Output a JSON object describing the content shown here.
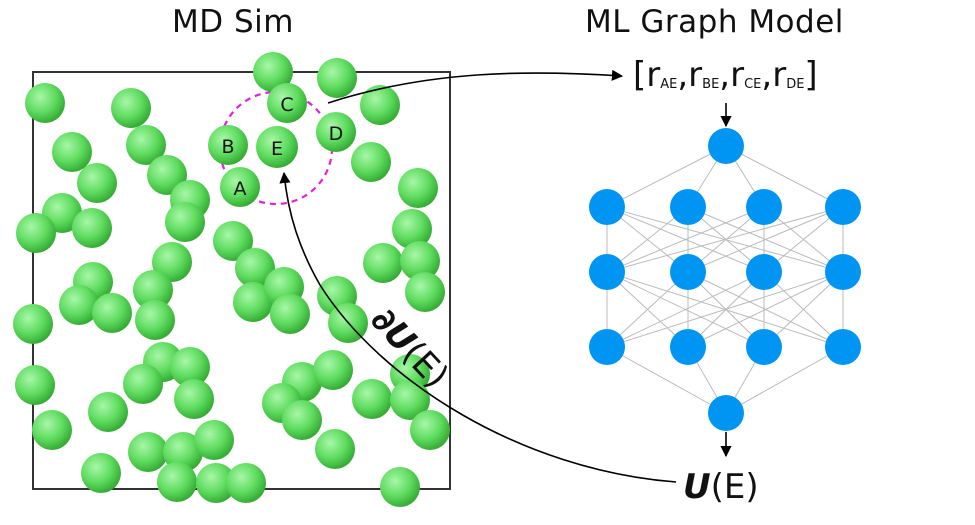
{
  "md_title": "MD Sim",
  "ml_title": "ML Graph Model",
  "atom_labels": {
    "A": "A",
    "B": "B",
    "C": "C",
    "D": "D",
    "E": "E"
  },
  "features": {
    "open": "[",
    "close": "]",
    "r": "r",
    "sep": ",",
    "subs": [
      "AE",
      "BE",
      "CE",
      "DE"
    ]
  },
  "energy": {
    "symbol": "U",
    "arg": "(E)"
  },
  "force": {
    "prefix": "∂",
    "symbol": "U",
    "arg": "(E)"
  },
  "colors": {
    "atom": "#6fe36f",
    "atom_dark": "#3bb83b",
    "box": "#222222",
    "cutoff": "#e020e0",
    "node": "#0095f2",
    "edge": "#bbbbbb",
    "arrow": "#000000"
  },
  "network": {
    "layers": [
      1,
      4,
      4,
      4,
      1
    ]
  }
}
